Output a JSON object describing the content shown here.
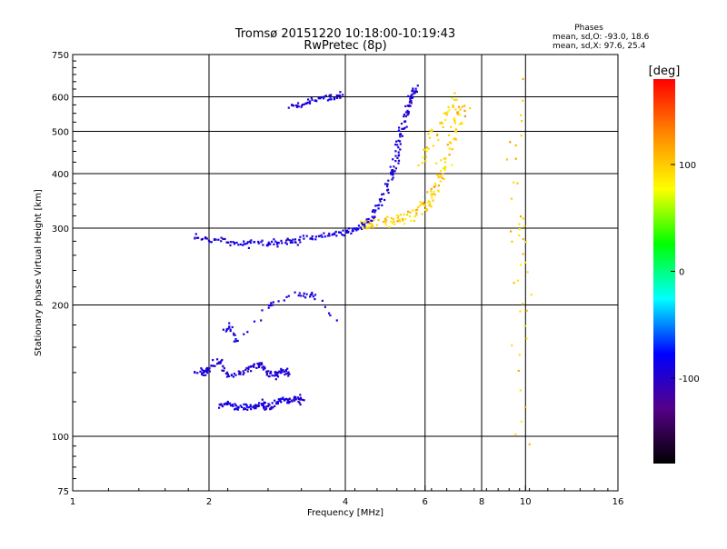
{
  "chart_data": {
    "type": "scatter",
    "title": "Tromsø 20151220 10:18:00-10:19:43",
    "subtitle": "RwPretec (8p)",
    "xlabel": "Frequency [MHz]",
    "ylabel": "Stationary phase Virtual Height [km]",
    "x_scale": "log",
    "y_scale": "log",
    "xlim": [
      1,
      16
    ],
    "ylim": [
      75,
      750
    ],
    "x_ticks": [
      "1",
      "2",
      "4",
      "6",
      "8",
      "10",
      "16"
    ],
    "y_ticks": [
      "75",
      "100",
      "200",
      "300",
      "400",
      "500",
      "600",
      "750"
    ],
    "grid": true,
    "stats": {
      "title": "Phases",
      "line_o": "mean, sd,O: -93.0, 18.6",
      "line_x": "mean, sd,X:  97.6, 25.4"
    },
    "colorbar": {
      "label": "[deg]",
      "ticks": [
        "100",
        "0",
        "-100"
      ],
      "range": [
        -180,
        180
      ],
      "colors": [
        "#ff0000",
        "#ff8800",
        "#ffff00",
        "#00ff00",
        "#00ffff",
        "#0000ff",
        "#550088",
        "#000000"
      ]
    },
    "series": [
      {
        "name": "O",
        "mean_phase_deg": -93.0,
        "sd_phase_deg": 18.6,
        "segments": [
          {
            "x": [
              1.83,
              2.0,
              2.2,
              2.4,
              2.6,
              2.8,
              3.0,
              3.2,
              3.5,
              3.8,
              4.0,
              4.2,
              4.4,
              4.6,
              4.8,
              5.0,
              5.1,
              5.2,
              5.3,
              5.4,
              5.5,
              5.6,
              5.7
            ],
            "y": [
              288,
              285,
              280,
              278,
              277,
              278,
              281,
              284,
              288,
              292,
              295,
              300,
              310,
              325,
              350,
              390,
              420,
              460,
              500,
              540,
              580,
              610,
              630
            ]
          },
          {
            "x": [
              1.87,
              1.95,
              2.0,
              2.1,
              2.2,
              2.35,
              2.5,
              2.6,
              2.7,
              2.8,
              2.9,
              3.0
            ],
            "y": [
              142,
              140,
              145,
              150,
              138,
              142,
              145,
              148,
              140,
              138,
              142,
              140
            ]
          },
          {
            "x": [
              2.1,
              2.2,
              2.3,
              2.4,
              2.5,
              2.6,
              2.7,
              2.8,
              2.9,
              3.0,
              3.1,
              3.2
            ],
            "y": [
              118,
              120,
              117,
              116,
              118,
              119,
              117,
              120,
              122,
              121,
              123,
              122
            ]
          },
          {
            "x": [
              3.0,
              3.1,
              3.2,
              3.3,
              3.4,
              3.6,
              3.7,
              3.8,
              3.9
            ],
            "y": [
              570,
              575,
              580,
              585,
              590,
              598,
              602,
              605,
              608
            ]
          },
          {
            "x": [
              2.15,
              2.2,
              2.25,
              2.3,
              2.7,
              2.75,
              3.15,
              3.3,
              3.4,
              3.8
            ],
            "y": [
              175,
              180,
              170,
              165,
              200,
              202,
              215,
              210,
              212,
              185
            ]
          }
        ]
      },
      {
        "name": "X",
        "mean_phase_deg": 97.6,
        "sd_phase_deg": 25.4,
        "segments": [
          {
            "x": [
              4.3,
              4.6,
              5.0,
              5.3,
              5.6,
              5.9,
              6.1,
              6.3,
              6.5,
              6.7,
              6.9,
              7.1,
              7.3
            ],
            "y": [
              305,
              308,
              312,
              318,
              325,
              335,
              350,
              370,
              400,
              440,
              490,
              540,
              580
            ]
          },
          {
            "x": [
              5.8,
              6.0,
              6.2,
              6.4,
              6.6,
              6.8,
              7.0
            ],
            "y": [
              420,
              450,
              480,
              510,
              540,
              570,
              600
            ]
          },
          {
            "x": [
              9.2,
              9.3,
              9.6,
              9.7,
              9.75,
              9.8,
              9.85,
              9.9
            ],
            "y": [
              485,
              100,
              645,
              320,
              290,
              240,
              165,
              97
            ]
          }
        ]
      }
    ]
  }
}
